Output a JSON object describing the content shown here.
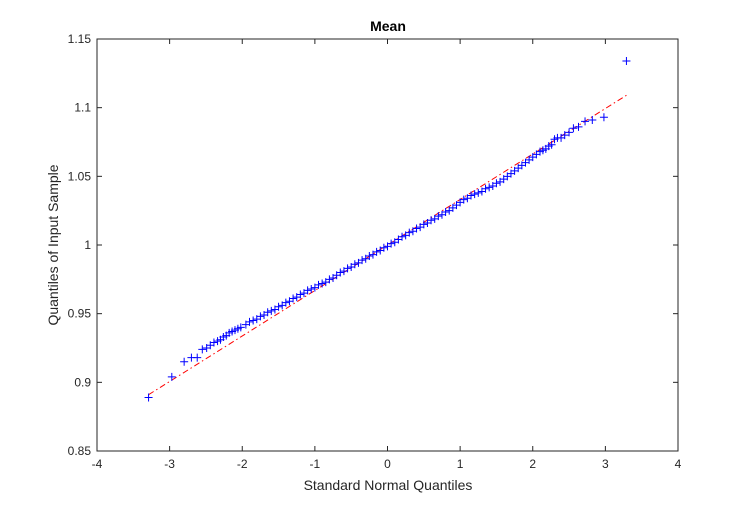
{
  "chart_data": {
    "type": "scatter",
    "title": "Mean",
    "xlabel": "Standard Normal Quantiles",
    "ylabel": "Quantiles of Input Sample",
    "xlim": [
      -4,
      4
    ],
    "ylim": [
      0.85,
      1.15
    ],
    "xticks": [
      -4,
      -3,
      -2,
      -1,
      0,
      1,
      2,
      3,
      4
    ],
    "yticks": [
      0.85,
      0.9,
      0.95,
      1,
      1.05,
      1.1,
      1.15
    ],
    "xtick_labels": [
      "-4",
      "-3",
      "-2",
      "-1",
      "0",
      "1",
      "2",
      "3",
      "4"
    ],
    "ytick_labels": [
      "0.85",
      "0.9",
      "0.95",
      "1",
      "1.05",
      "1.1",
      "1.15"
    ],
    "grid": false,
    "marker": "+",
    "marker_color": "#0000ff",
    "reference_line": {
      "style": "dash-dot",
      "color": "#ff0000",
      "points": [
        [
          -3.29,
          0.891
        ],
        [
          3.29,
          1.109
        ]
      ]
    },
    "points": [
      [
        -3.29,
        0.889
      ],
      [
        -2.97,
        0.904
      ],
      [
        -2.8,
        0.915
      ],
      [
        -2.7,
        0.918
      ],
      [
        -2.62,
        0.918
      ],
      [
        -2.55,
        0.924
      ],
      [
        -2.49,
        0.925
      ],
      [
        -2.44,
        0.927
      ],
      [
        -2.39,
        0.929
      ],
      [
        -2.34,
        0.93
      ],
      [
        -2.3,
        0.931
      ],
      [
        -2.26,
        0.933
      ],
      [
        -2.22,
        0.934
      ],
      [
        -2.18,
        0.936
      ],
      [
        -2.14,
        0.937
      ],
      [
        -2.1,
        0.938
      ],
      [
        -2.06,
        0.939
      ],
      [
        -2.02,
        0.94
      ],
      [
        -1.95,
        0.942
      ],
      [
        -1.9,
        0.944
      ],
      [
        -1.85,
        0.945
      ],
      [
        -1.8,
        0.946
      ],
      [
        -1.75,
        0.948
      ],
      [
        -1.7,
        0.949
      ],
      [
        -1.65,
        0.951
      ],
      [
        -1.6,
        0.952
      ],
      [
        -1.55,
        0.953
      ],
      [
        -1.5,
        0.955
      ],
      [
        -1.45,
        0.956
      ],
      [
        -1.4,
        0.958
      ],
      [
        -1.35,
        0.959
      ],
      [
        -1.3,
        0.961
      ],
      [
        -1.25,
        0.962
      ],
      [
        -1.2,
        0.964
      ],
      [
        -1.15,
        0.965
      ],
      [
        -1.1,
        0.967
      ],
      [
        -1.05,
        0.968
      ],
      [
        -1.0,
        0.969
      ],
      [
        -0.95,
        0.971
      ],
      [
        -0.9,
        0.972
      ],
      [
        -0.85,
        0.973
      ],
      [
        -0.8,
        0.975
      ],
      [
        -0.75,
        0.976
      ],
      [
        -0.7,
        0.978
      ],
      [
        -0.65,
        0.98
      ],
      [
        -0.6,
        0.981
      ],
      [
        -0.55,
        0.983
      ],
      [
        -0.5,
        0.984
      ],
      [
        -0.45,
        0.986
      ],
      [
        -0.4,
        0.987
      ],
      [
        -0.35,
        0.989
      ],
      [
        -0.3,
        0.99
      ],
      [
        -0.25,
        0.992
      ],
      [
        -0.2,
        0.993
      ],
      [
        -0.15,
        0.995
      ],
      [
        -0.1,
        0.996
      ],
      [
        -0.05,
        0.998
      ],
      [
        0.0,
        0.999
      ],
      [
        0.05,
        1.001
      ],
      [
        0.1,
        1.002
      ],
      [
        0.15,
        1.004
      ],
      [
        0.2,
        1.006
      ],
      [
        0.25,
        1.007
      ],
      [
        0.3,
        1.009
      ],
      [
        0.35,
        1.01
      ],
      [
        0.4,
        1.012
      ],
      [
        0.45,
        1.013
      ],
      [
        0.5,
        1.015
      ],
      [
        0.55,
        1.016
      ],
      [
        0.6,
        1.018
      ],
      [
        0.65,
        1.019
      ],
      [
        0.7,
        1.021
      ],
      [
        0.75,
        1.022
      ],
      [
        0.8,
        1.024
      ],
      [
        0.85,
        1.025
      ],
      [
        0.9,
        1.027
      ],
      [
        0.95,
        1.029
      ],
      [
        1.0,
        1.031
      ],
      [
        1.05,
        1.033
      ],
      [
        1.1,
        1.034
      ],
      [
        1.15,
        1.036
      ],
      [
        1.2,
        1.037
      ],
      [
        1.25,
        1.038
      ],
      [
        1.3,
        1.039
      ],
      [
        1.35,
        1.041
      ],
      [
        1.4,
        1.042
      ],
      [
        1.45,
        1.043
      ],
      [
        1.5,
        1.045
      ],
      [
        1.55,
        1.046
      ],
      [
        1.6,
        1.048
      ],
      [
        1.65,
        1.05
      ],
      [
        1.7,
        1.052
      ],
      [
        1.75,
        1.054
      ],
      [
        1.8,
        1.056
      ],
      [
        1.85,
        1.058
      ],
      [
        1.9,
        1.06
      ],
      [
        1.95,
        1.062
      ],
      [
        2.0,
        1.064
      ],
      [
        2.05,
        1.066
      ],
      [
        2.1,
        1.068
      ],
      [
        2.14,
        1.069
      ],
      [
        2.18,
        1.07
      ],
      [
        2.22,
        1.072
      ],
      [
        2.26,
        1.073
      ],
      [
        2.3,
        1.077
      ],
      [
        2.34,
        1.078
      ],
      [
        2.39,
        1.078
      ],
      [
        2.44,
        1.08
      ],
      [
        2.5,
        1.082
      ],
      [
        2.56,
        1.085
      ],
      [
        2.63,
        1.086
      ],
      [
        2.72,
        1.09
      ],
      [
        2.82,
        1.091
      ],
      [
        2.98,
        1.093
      ],
      [
        3.29,
        1.134
      ]
    ]
  }
}
